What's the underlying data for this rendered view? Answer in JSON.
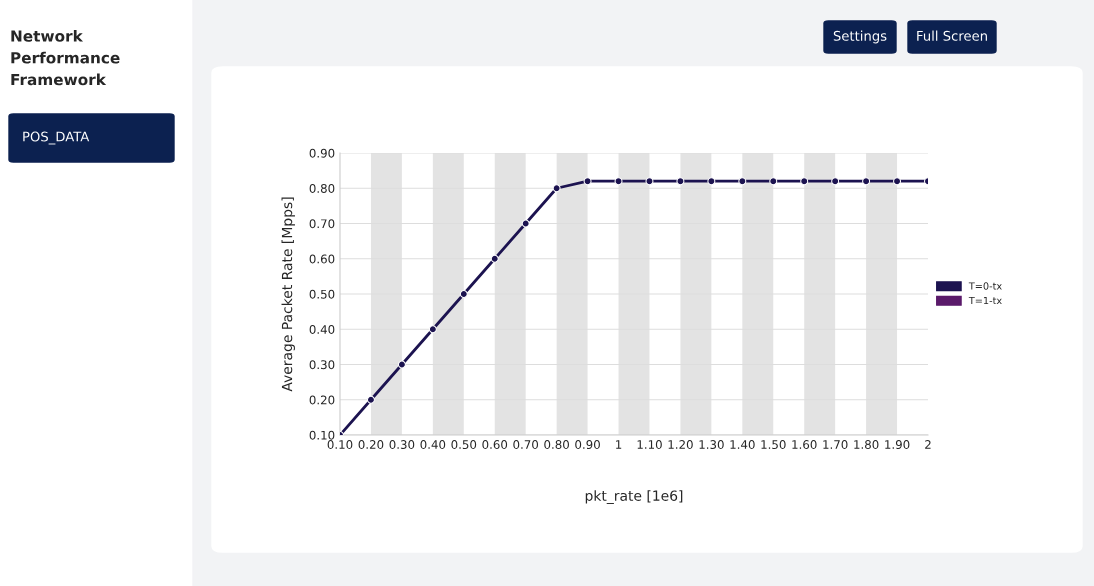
{
  "chart_data": {
    "type": "line",
    "title": "Network Performance Framework",
    "xlabel": "pkt_rate [1e6]",
    "ylabel": "Average Packet Rate [Mpps]",
    "annotations": [
      "POS_DATA",
      "Settings",
      "Full Screen"
    ],
    "categories": [
      "0.10",
      "0.20",
      "0.30",
      "0.40",
      "0.50",
      "0.60",
      "0.70",
      "0.80",
      "0.90",
      "1",
      "1.10",
      "1.20",
      "1.30",
      "1.40",
      "1.50",
      "1.60",
      "1.70",
      "1.80",
      "1.90",
      "2"
    ],
    "series": [
      {
        "name": "T=0-tx",
        "color": "#1c1350",
        "values": [
          0.1,
          0.2,
          0.3,
          0.4,
          0.5,
          0.6,
          0.7,
          0.8,
          0.82,
          0.82,
          0.82,
          0.82,
          0.82,
          0.82,
          0.82,
          0.82,
          0.82,
          0.82,
          0.82,
          0.82
        ]
      },
      {
        "name": "T=1-tx",
        "color": "#5a1a6a",
        "values": [
          null,
          null,
          null,
          null,
          null,
          null,
          null,
          null,
          null,
          null,
          null,
          null,
          null,
          null,
          null,
          null,
          null,
          null,
          null,
          null
        ]
      }
    ],
    "ylim": [
      0.1,
      0.9
    ],
    "yticks": [
      {
        "value": 0.1,
        "label": "0.10"
      },
      {
        "value": 0.2,
        "label": "0.20"
      },
      {
        "value": 0.3,
        "label": "0.30"
      },
      {
        "value": 0.4,
        "label": "0.40"
      },
      {
        "value": 0.5,
        "label": "0.50"
      },
      {
        "value": 0.6,
        "label": "0.60"
      },
      {
        "value": 0.7,
        "label": "0.70"
      },
      {
        "value": 0.8,
        "label": "0.80"
      },
      {
        "value": 0.9,
        "label": "0.90"
      }
    ],
    "bands": [
      {
        "axis": "x",
        "from": "0.20",
        "to": "0.30",
        "color": "#e3e3e3"
      },
      {
        "axis": "x",
        "from": "0.40",
        "to": "0.50",
        "color": "#e3e3e3"
      },
      {
        "axis": "x",
        "from": "0.60",
        "to": "0.70",
        "color": "#e3e3e3"
      },
      {
        "axis": "x",
        "from": "0.80",
        "to": "0.90",
        "color": "#e3e3e3"
      },
      {
        "axis": "x",
        "from": "1",
        "to": "1.10",
        "color": "#e3e3e3"
      },
      {
        "axis": "x",
        "from": "1.20",
        "to": "1.30",
        "color": "#e3e3e3"
      },
      {
        "axis": "x",
        "from": "1.40",
        "to": "1.50",
        "color": "#e3e3e3"
      },
      {
        "axis": "x",
        "from": "1.60",
        "to": "1.70",
        "color": "#e3e3e3"
      },
      {
        "axis": "x",
        "from": "1.80",
        "to": "1.90",
        "color": "#e3e3e3"
      }
    ],
    "grid": "y",
    "legend": "right",
    "marker": "circle",
    "line_style": "solid"
  }
}
